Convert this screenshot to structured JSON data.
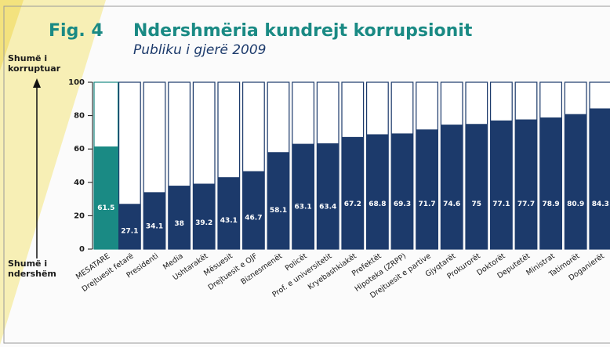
{
  "chart_data": {
    "type": "bar",
    "title": "Fig. 4",
    "heading": "Ndershmëria kundrejt korrupsionit",
    "subtitle": "Publiku i gjerë 2009",
    "y_label_top": "Shumë i korruptuar",
    "y_label_bottom": "Shumë i ndershëm",
    "categories": [
      "MESATARE",
      "Drejtuesit fetarë",
      "Presidenti",
      "Media",
      "Ushtarakët",
      "Mësuesit",
      "Drejtuesit e OJF",
      "Biznesmenët",
      "Policët",
      "Prof. e universitetit",
      "Kryebashkiakët",
      "Prefektët",
      "Hipoteka (ZRPP)",
      "Drejtuesit e partive",
      "Gjyqtarët",
      "Prokurorët",
      "Doktorët",
      "Deputetët",
      "Ministrat",
      "Tatimorët",
      "Doganierët"
    ],
    "values": [
      61.5,
      27.1,
      34.1,
      38,
      39.2,
      43.1,
      46.7,
      58.1,
      63.1,
      63.4,
      67.2,
      68.8,
      69.3,
      71.7,
      74.6,
      75,
      77.1,
      77.7,
      78.9,
      80.9,
      84.3
    ],
    "colors": [
      "#1a8a84",
      "#1c3a6b",
      "#1c3a6b",
      "#1c3a6b",
      "#1c3a6b",
      "#1c3a6b",
      "#1c3a6b",
      "#1c3a6b",
      "#1c3a6b",
      "#1c3a6b",
      "#1c3a6b",
      "#1c3a6b",
      "#1c3a6b",
      "#1c3a6b",
      "#1c3a6b",
      "#1c3a6b",
      "#1c3a6b",
      "#1c3a6b",
      "#1c3a6b",
      "#1c3a6b",
      "#1c3a6b"
    ],
    "ylim": [
      0,
      100
    ],
    "yticks": [
      0,
      20,
      40,
      60,
      80,
      100
    ]
  }
}
